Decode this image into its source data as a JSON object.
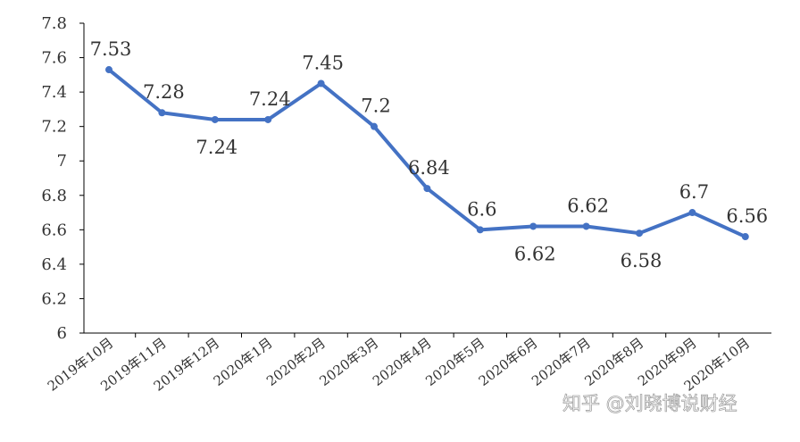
{
  "chart_data": {
    "type": "line",
    "title": "",
    "xlabel": "",
    "ylabel": "",
    "categories": [
      "2019年10月",
      "2019年11月",
      "2019年12月",
      "2020年1月",
      "2020年2月",
      "2020年3月",
      "2020年4月",
      "2020年5月",
      "2020年6月",
      "2020年7月",
      "2020年8月",
      "2020年9月",
      "2020年10月"
    ],
    "series": [
      {
        "values": [
          7.53,
          7.28,
          7.24,
          7.24,
          7.45,
          7.2,
          6.84,
          6.6,
          6.62,
          6.62,
          6.58,
          6.7,
          6.56
        ],
        "labels": [
          "7.53",
          "7.28",
          "7.24",
          "7.24",
          "7.45",
          "7.2",
          "6.84",
          "6.6",
          "6.62",
          "6.62",
          "6.58",
          "6.7",
          "6.56"
        ],
        "label_side": [
          "above",
          "above",
          "below",
          "above",
          "above",
          "above",
          "above",
          "above",
          "below",
          "above",
          "below",
          "above",
          "above"
        ],
        "color": "#4472c4"
      }
    ],
    "ylim": [
      6,
      7.8
    ],
    "y_ticks": [
      "6",
      "6.2",
      "6.4",
      "6.6",
      "6.8",
      "7",
      "7.2",
      "7.4",
      "7.6",
      "7.8"
    ],
    "grid": false,
    "legend": "none"
  },
  "watermark": {
    "text": "知乎 @刘晓博说财经"
  }
}
